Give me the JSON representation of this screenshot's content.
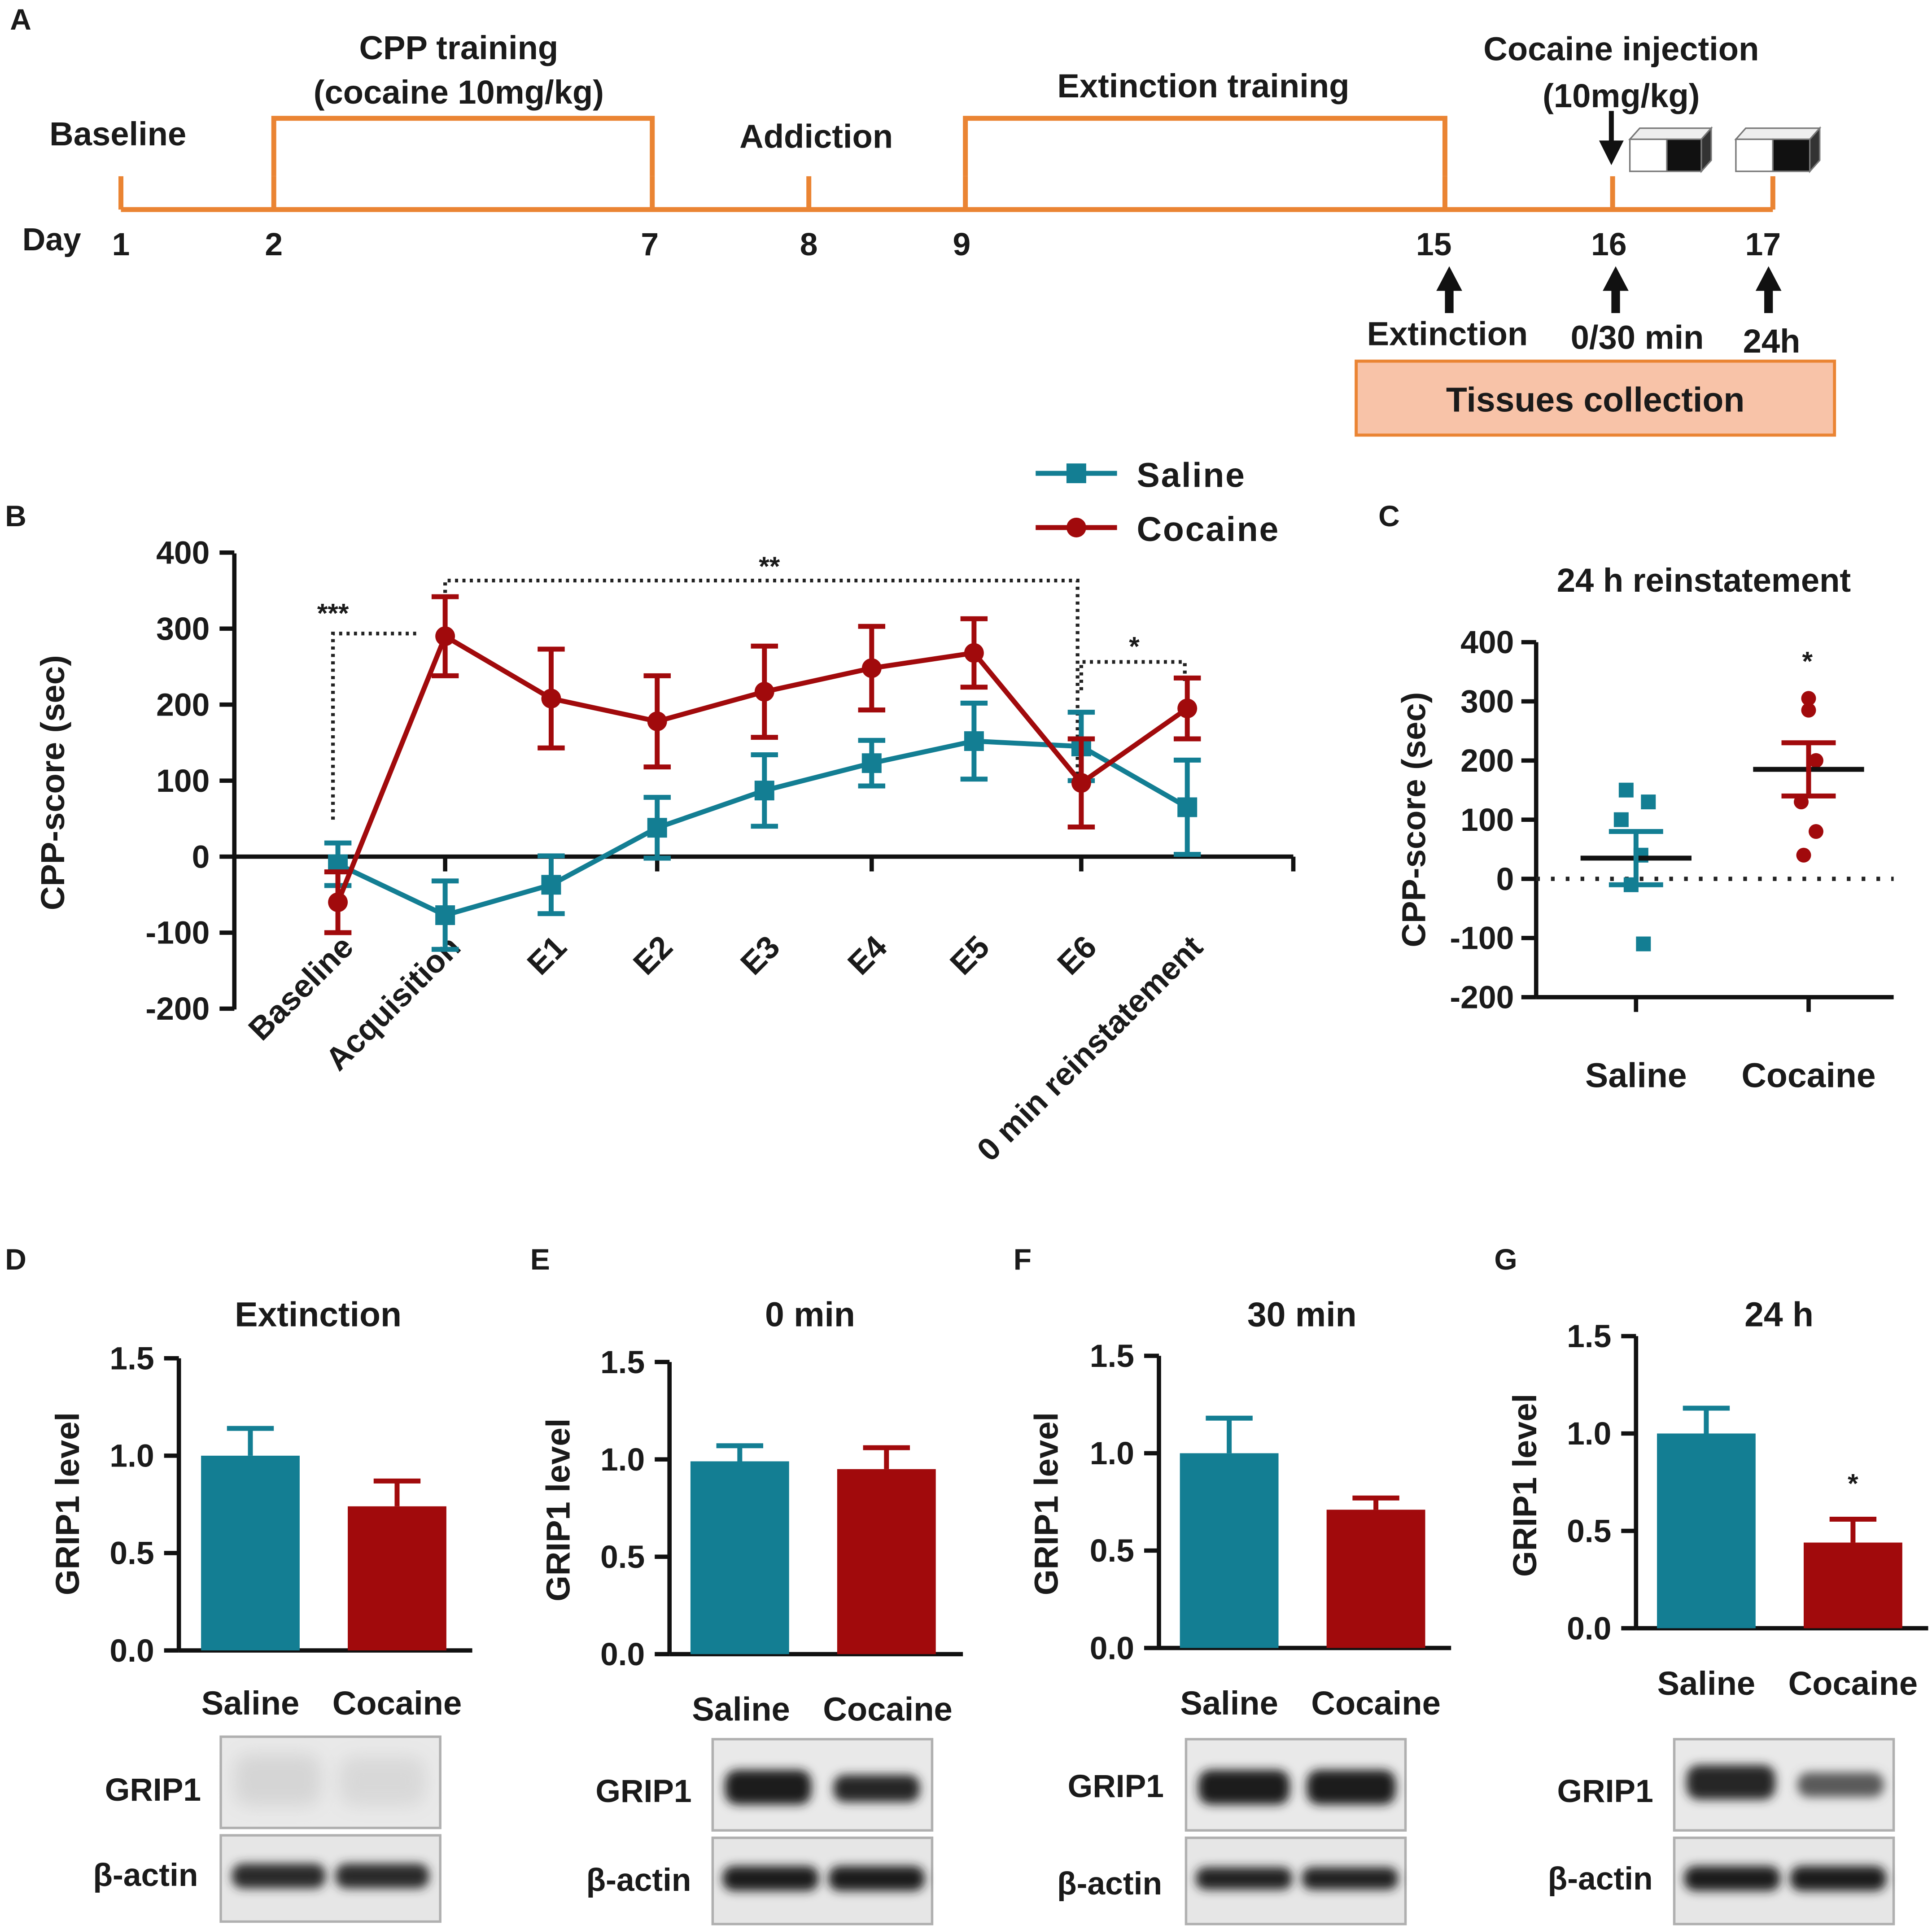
{
  "colors": {
    "saline": "#137e93",
    "cocaine": "#a10a0c",
    "timeline": "#ea8433",
    "box_fill": "#f8c3a8",
    "axis": "#111111"
  },
  "panel_labels": {
    "a": "A",
    "b": "B",
    "c": "C",
    "d": "D",
    "e": "E",
    "f": "F",
    "g": "G"
  },
  "timeline": {
    "day_label": "Day",
    "days": [
      "1",
      "2",
      "7",
      "8",
      "9",
      "15",
      "16",
      "17"
    ],
    "baseline": "Baseline",
    "cpp_line1": "CPP training",
    "cpp_line2": "(cocaine 10mg/kg)",
    "addiction": "Addiction",
    "extinction_training": "Extinction training",
    "cocaine_inj_line1": "Cocaine injection",
    "cocaine_inj_line2": "(10mg/kg)",
    "extinction": "Extinction",
    "time_0_30": "0/30 min",
    "time_24h": "24h",
    "tissues": "Tissues collection"
  },
  "chart_data": [
    {
      "type": "line",
      "panel": "B",
      "ylabel": "CPP-score (sec)",
      "ylim": [
        -200,
        400
      ],
      "yticks": [
        "400",
        "300",
        "200",
        "100",
        "0",
        "-100",
        "-200"
      ],
      "categories": [
        "Baseline",
        "Acquisition",
        "E1",
        "E2",
        "E3",
        "E4",
        "E5",
        "E6",
        "0 min reinstatement"
      ],
      "series": [
        {
          "name": "Saline",
          "values": [
            -10,
            -77,
            -37,
            38,
            87,
            123,
            152,
            145,
            65
          ],
          "errors": [
            28,
            45,
            38,
            40,
            47,
            30,
            50,
            45,
            62
          ]
        },
        {
          "name": "Cocaine",
          "values": [
            -60,
            290,
            208,
            178,
            217,
            248,
            268,
            97,
            195
          ],
          "errors": [
            40,
            52,
            65,
            60,
            60,
            55,
            45,
            58,
            40
          ]
        }
      ],
      "sig": [
        "***",
        "**",
        "*"
      ]
    },
    {
      "type": "scatter",
      "panel": "C",
      "title": "24 h reinstatement",
      "ylabel": "CPP-score (sec)",
      "ylim": [
        -200,
        400
      ],
      "yticks": [
        "400",
        "300",
        "200",
        "100",
        "0",
        "-100",
        "-200"
      ],
      "categories": [
        "Saline",
        "Cocaine"
      ],
      "points": [
        [
          150,
          130,
          100,
          40,
          -10,
          -110
        ],
        [
          305,
          285,
          200,
          130,
          80,
          40
        ]
      ],
      "means": [
        35,
        185
      ],
      "sem": [
        45,
        45
      ],
      "sig": "*"
    },
    {
      "type": "bar",
      "panel": "D",
      "title": "Extinction",
      "ylabel": "GRIP1 level",
      "ylim": [
        0,
        1.5
      ],
      "yticks": [
        "1.5",
        "1.0",
        "0.5",
        "0.0"
      ],
      "categories": [
        "Saline",
        "Cocaine"
      ],
      "values": [
        1.0,
        0.74
      ],
      "errors": [
        0.14,
        0.13
      ],
      "sig": ""
    },
    {
      "type": "bar",
      "panel": "E",
      "title": "0 min",
      "ylabel": "GRIP1 level",
      "ylim": [
        0,
        1.5
      ],
      "yticks": [
        "1.5",
        "1.0",
        "0.5",
        "0.0"
      ],
      "categories": [
        "Saline",
        "Cocaine"
      ],
      "values": [
        0.99,
        0.95
      ],
      "errors": [
        0.08,
        0.11
      ],
      "sig": ""
    },
    {
      "type": "bar",
      "panel": "F",
      "title": "30 min",
      "ylabel": "GRIP1 level",
      "ylim": [
        0,
        1.5
      ],
      "yticks": [
        "1.5",
        "1.0",
        "0.5",
        "0.0"
      ],
      "categories": [
        "Saline",
        "Cocaine"
      ],
      "values": [
        1.0,
        0.71
      ],
      "errors": [
        0.18,
        0.06
      ],
      "sig": ""
    },
    {
      "type": "bar",
      "panel": "G",
      "title": "24 h",
      "ylabel": "GRIP1 level",
      "ylim": [
        0,
        1.5
      ],
      "yticks": [
        "1.5",
        "1.0",
        "0.5",
        "0.0"
      ],
      "categories": [
        "Saline",
        "Cocaine"
      ],
      "values": [
        1.0,
        0.44
      ],
      "errors": [
        0.13,
        0.12
      ],
      "sig": "*"
    }
  ],
  "blot": {
    "grip1": "GRIP1",
    "actin": "β-actin"
  },
  "legend": {
    "saline": "Saline",
    "cocaine": "Cocaine"
  }
}
